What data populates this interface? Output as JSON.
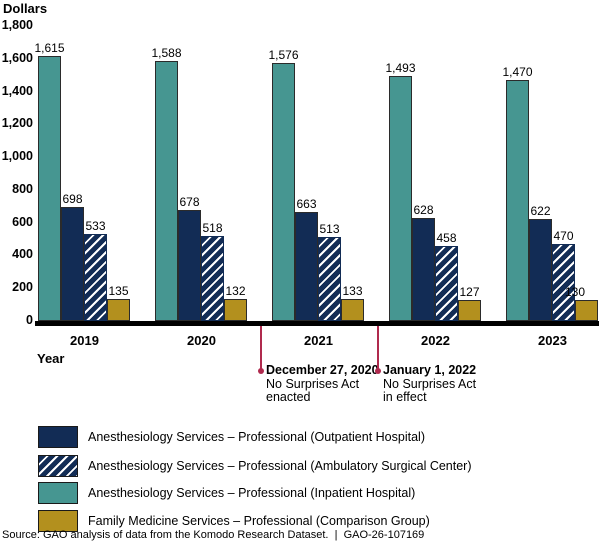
{
  "chart_data": {
    "type": "bar",
    "title": "",
    "categories": [
      "2019",
      "2020",
      "2021",
      "2022",
      "2023"
    ],
    "series": [
      {
        "name": "Anesthesiology Services – Professional (Inpatient Hospital)",
        "style": "sw-teal",
        "values": [
          1615,
          1588,
          1576,
          1493,
          1470
        ]
      },
      {
        "name": "Anesthesiology Services – Professional (Outpatient Hospital)",
        "style": "sw-navy",
        "values": [
          698,
          678,
          663,
          628,
          622
        ]
      },
      {
        "name": "Anesthesiology Services – Professional (Ambulatory Surgical Center)",
        "style": "sw-hatched",
        "values": [
          533,
          518,
          513,
          458,
          470
        ]
      },
      {
        "name": "Family Medicine Services – Professional (Comparison Group)",
        "style": "sw-gold",
        "values": [
          135,
          132,
          133,
          127,
          130
        ]
      }
    ],
    "ylabel": "Dollars",
    "xlabel": "Year",
    "ylim": [
      0,
      1800
    ],
    "yticks": [
      0,
      200,
      400,
      600,
      800,
      1000,
      1200,
      1400,
      1600,
      1800
    ],
    "grid": false,
    "legend_position": "bottom"
  },
  "annotations": [
    {
      "date": "December 27, 2020",
      "line2": "No Surprises Act",
      "line3": "enacted"
    },
    {
      "date": "January 1, 2022",
      "line2": "No Surprises Act",
      "line3": "in effect"
    }
  ],
  "legend": {
    "items": [
      {
        "label": "Anesthesiology Services – Professional (Outpatient Hospital)",
        "swatch_class": "lg-swatch sw-navy"
      },
      {
        "label": "Anesthesiology Services – Professional (Ambulatory Surgical Center)",
        "swatch_class": "lg-swatch sw-hatched"
      },
      {
        "label": "Anesthesiology Services – Professional (Inpatient Hospital)",
        "swatch_class": "lg-swatch sw-teal"
      },
      {
        "label": "Family Medicine Services – Professional (Comparison Group)",
        "swatch_class": "lg-swatch sw-gold"
      }
    ]
  },
  "source_line": "Source: GAO analysis of data from the Komodo Research Dataset.  |  GAO-26-107169",
  "colors": {
    "navy": "#122c55",
    "teal": "#469691",
    "gold": "#b3901e",
    "annotation_red": "#b02a4e",
    "axis_black": "#000000"
  }
}
